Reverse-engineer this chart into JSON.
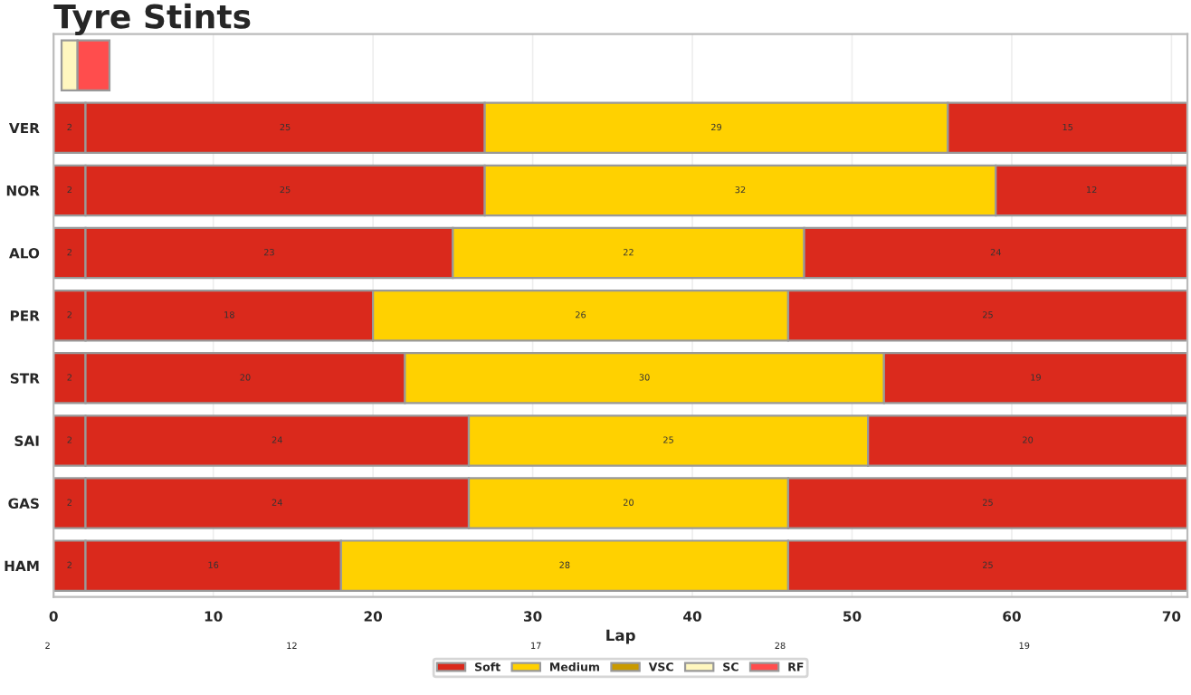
{
  "chart_data": {
    "type": "bar",
    "title": "Tyre Stints",
    "orientation": "horizontal",
    "stacked": true,
    "data_labels": true,
    "xlabel": "Lap",
    "legend": "bottom",
    "grid": "x",
    "categories": [
      null,
      "VER",
      "NOR",
      "ALO",
      "PER",
      "STR",
      "SAI",
      "GAS",
      "HAM"
    ],
    "xlim": [
      0,
      71
    ],
    "xticks": [
      0,
      10,
      20,
      30,
      40,
      50,
      60,
      70
    ],
    "series": [
      {
        "color": "#d8281b",
        "values": [
          null,
          2,
          2,
          2,
          2,
          2,
          2,
          2,
          2
        ]
      },
      {
        "name": "Soft",
        "color": "#da291c",
        "values": [
          null,
          25,
          25,
          23,
          18,
          20,
          24,
          24,
          16
        ]
      },
      {
        "name": "Medium",
        "color": "#ffd100",
        "values": [
          null,
          29,
          32,
          22,
          26,
          30,
          25,
          20,
          28
        ]
      },
      {
        "color": "#db2a1d",
        "values": [
          null,
          15,
          12,
          24,
          25,
          19,
          20,
          25,
          25
        ]
      },
      {
        "name": "VSC",
        "color": "#c99a00",
        "values": [
          null,
          null,
          null,
          null,
          null,
          null,
          null,
          null,
          null
        ]
      },
      {
        "name": "SC",
        "color": "#fff7bf",
        "values": [
          1,
          null,
          null,
          null,
          null,
          null,
          null,
          null,
          null
        ],
        "base": [
          0.5,
          null,
          null,
          null,
          null,
          null,
          null,
          null,
          null
        ],
        "value_labels": [
          null,
          null,
          null,
          null,
          null,
          null,
          null,
          null,
          null
        ]
      },
      {
        "name": "RF",
        "color": "#ff4d4d",
        "values": [
          2,
          null,
          null,
          null,
          null,
          null,
          null,
          null,
          null
        ],
        "base": [
          1.5,
          null,
          null,
          null,
          null,
          null,
          null,
          null,
          null
        ],
        "value_labels": [
          null,
          null,
          null,
          null,
          null,
          null,
          null,
          null,
          null
        ]
      }
    ],
    "annotations": [
      "2",
      "12",
      "17",
      "28",
      "19"
    ]
  }
}
